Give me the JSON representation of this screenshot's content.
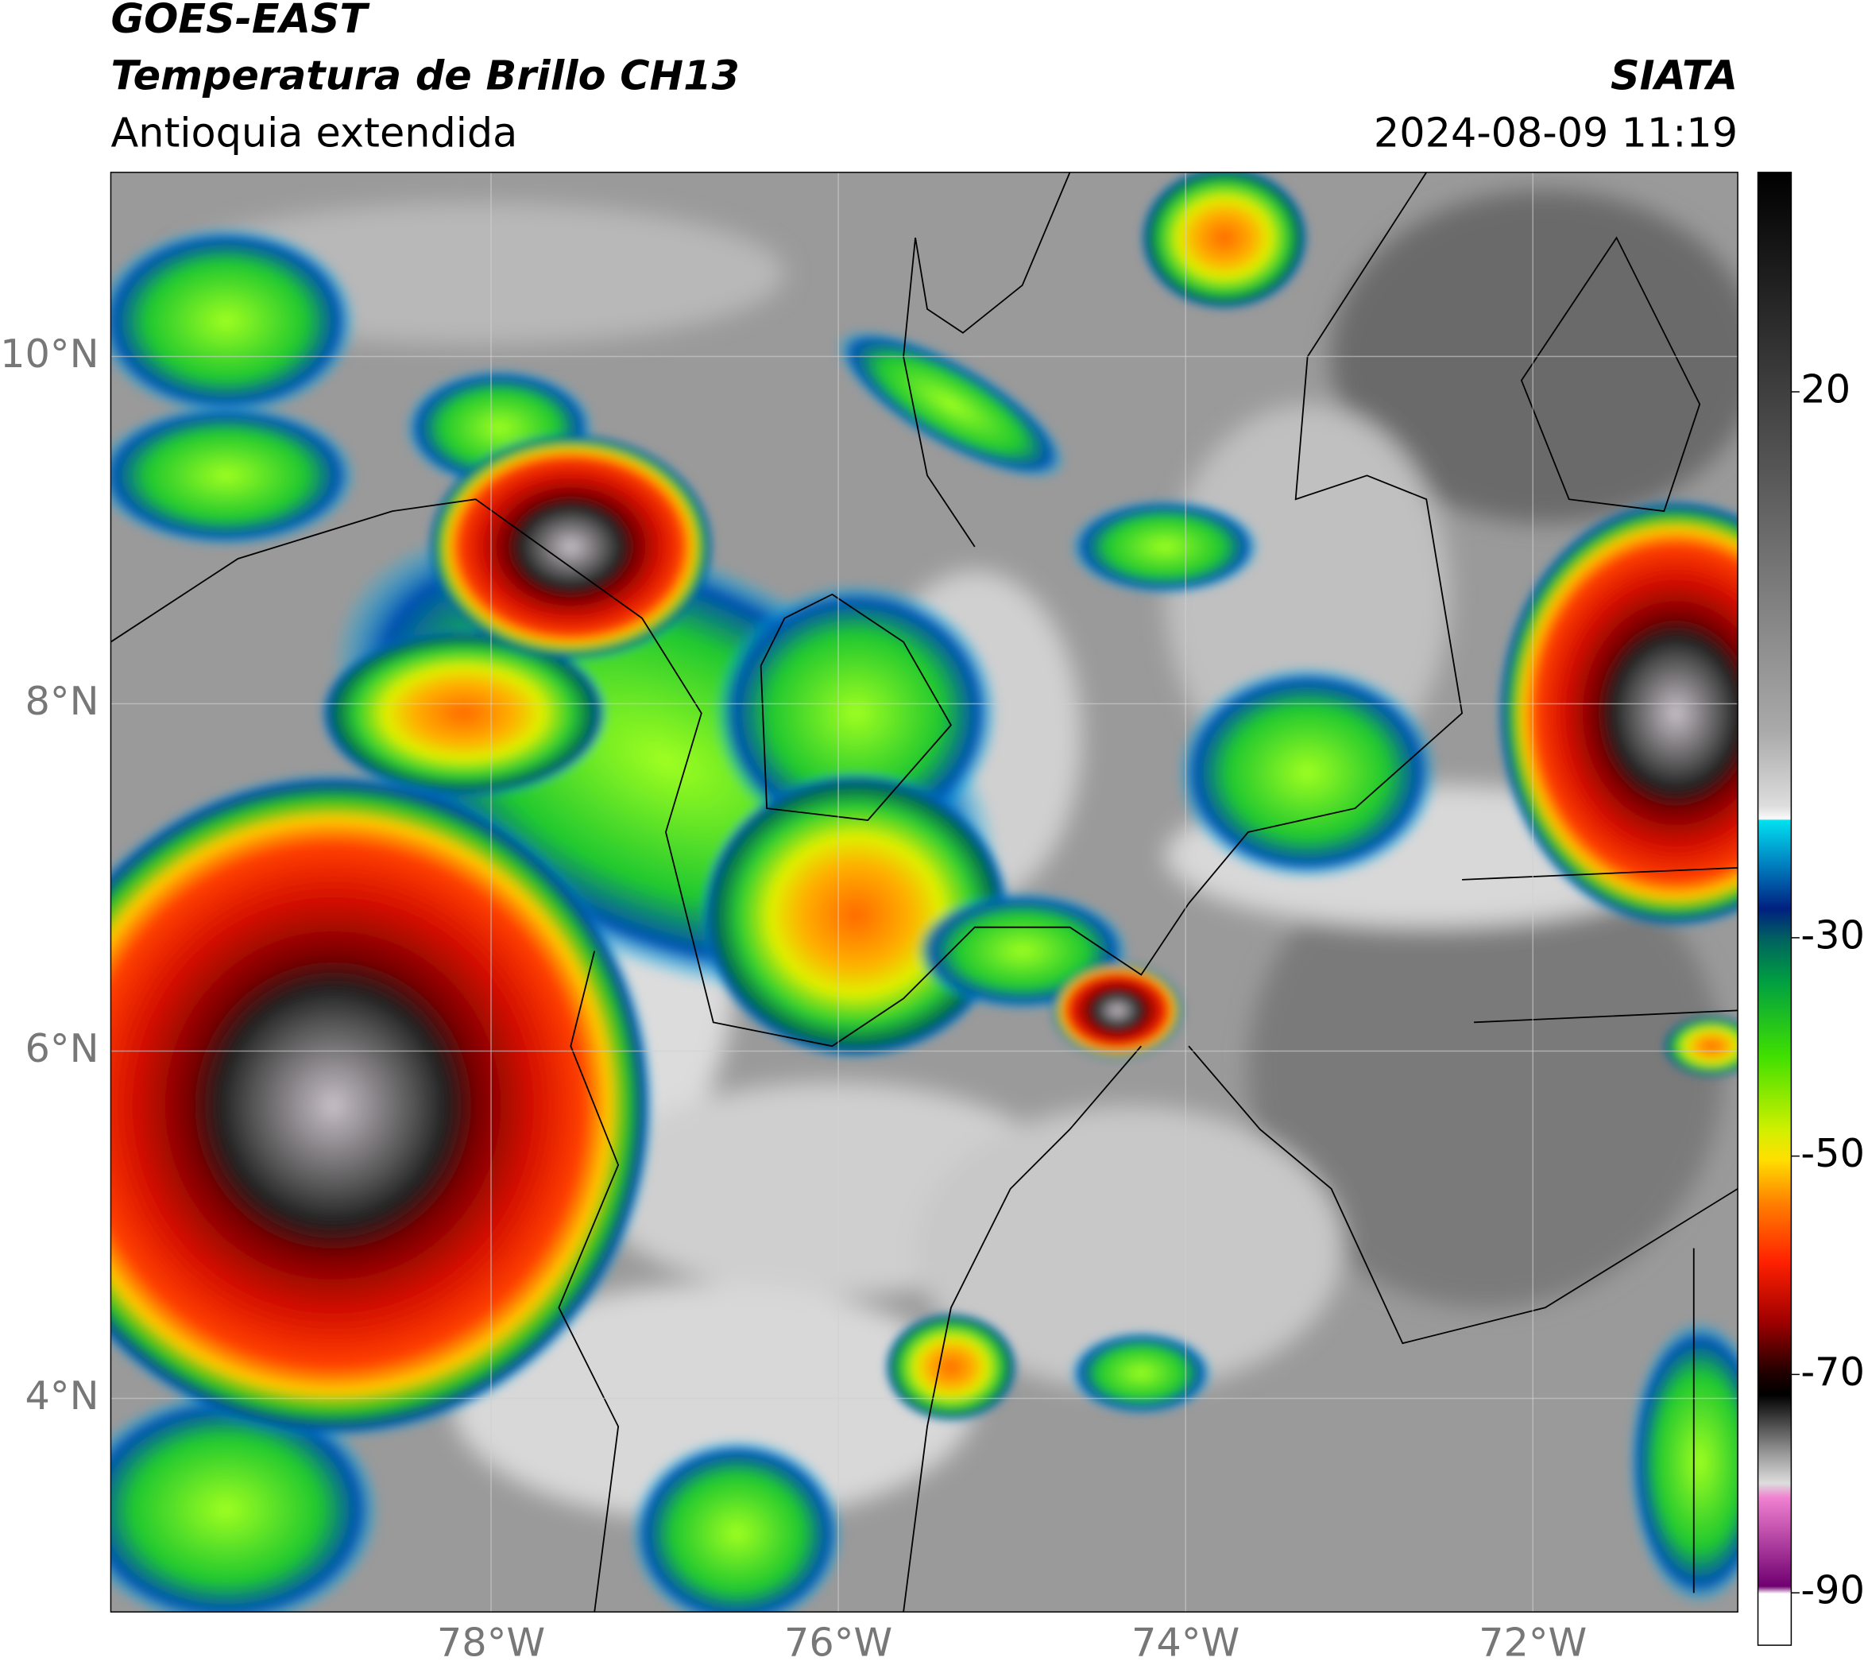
{
  "header": {
    "title": "GOES-EAST",
    "subtitle": "Temperatura de Brillo CH13",
    "region": "Antioquia extendida",
    "agency": "SIATA",
    "datetime": "2024-08-09 11:19"
  },
  "map": {
    "xlim": [
      -80.19,
      -70.82
    ],
    "ylim": [
      2.77,
      11.06
    ],
    "xticks": [
      {
        "value": -78,
        "label": "78°W"
      },
      {
        "value": -76,
        "label": "76°W"
      },
      {
        "value": -74,
        "label": "74°W"
      },
      {
        "value": -72,
        "label": "72°W"
      }
    ],
    "yticks": [
      {
        "value": 4,
        "label": "4°N"
      },
      {
        "value": 6,
        "label": "6°N"
      },
      {
        "value": 8,
        "label": "8°N"
      },
      {
        "value": 10,
        "label": "10°N"
      }
    ],
    "grid": true
  },
  "colorbar": {
    "lim": [
      -94.8,
      40.1
    ],
    "ticks": [
      20,
      -30,
      -50,
      -70,
      -90
    ]
  }
}
